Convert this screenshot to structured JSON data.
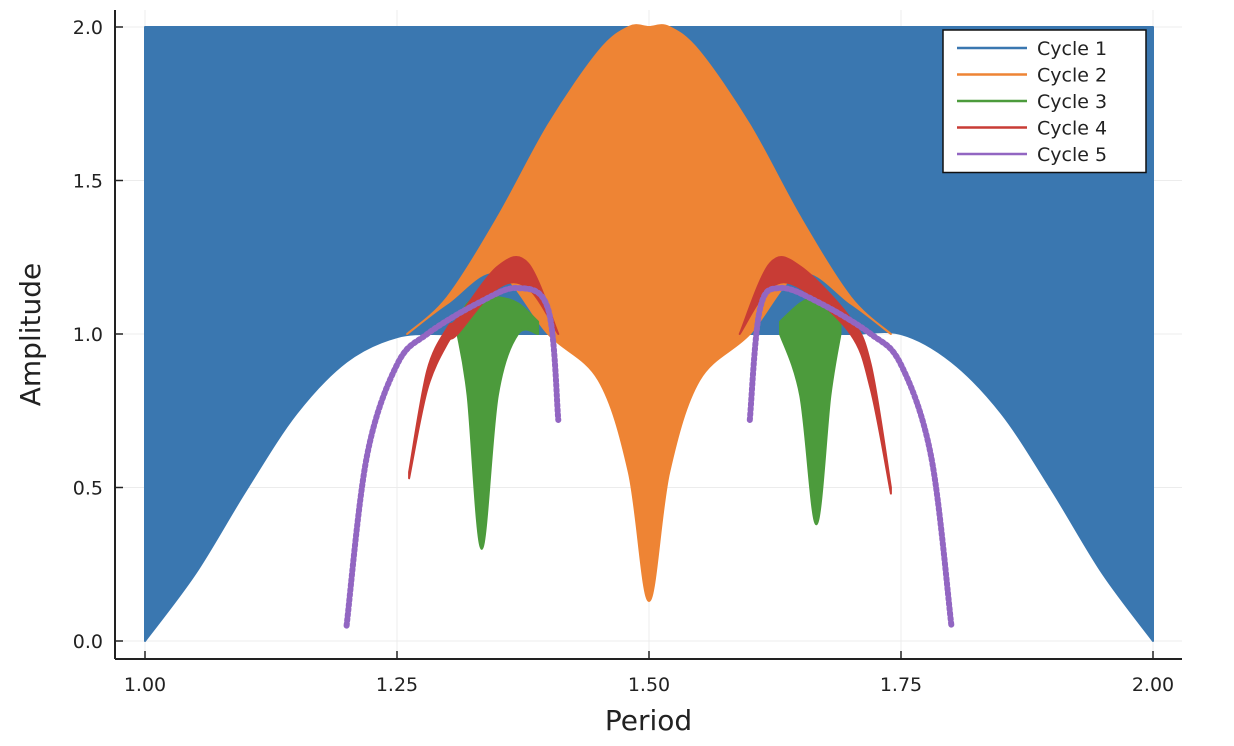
{
  "chart_data": {
    "type": "scatter",
    "title": "",
    "xlabel": "Period",
    "ylabel": "Amplitude",
    "xlim": [
      1.0,
      2.0
    ],
    "ylim": [
      0.0,
      2.0
    ],
    "xticks": [
      1.0,
      1.25,
      1.5,
      1.75,
      2.0
    ],
    "xtick_labels": [
      "1.00",
      "1.25",
      "1.50",
      "1.75",
      "2.00"
    ],
    "yticks": [
      0.0,
      0.5,
      1.0,
      1.5,
      2.0
    ],
    "ytick_labels": [
      "0.0",
      "0.5",
      "1.0",
      "1.5",
      "2.0"
    ],
    "grid": true,
    "legend_position": "top-right",
    "series": [
      {
        "name": "Cycle 1",
        "color": "#3a77b0",
        "region": "filled band",
        "x": [
          1.0,
          1.05,
          1.1,
          1.15,
          1.2,
          1.25,
          1.3,
          1.35,
          1.4,
          1.45,
          1.5,
          1.55,
          1.6,
          1.65,
          1.7,
          1.75,
          1.8,
          1.85,
          1.9,
          1.95,
          2.0
        ],
        "y_lower": [
          0.0,
          0.22,
          0.49,
          0.74,
          0.91,
          0.99,
          1.0,
          1.0,
          1.0,
          1.0,
          1.0,
          1.0,
          1.0,
          1.0,
          1.0,
          1.0,
          0.91,
          0.74,
          0.49,
          0.22,
          0.0
        ],
        "y_upper": [
          2.0,
          2.0,
          2.0,
          2.0,
          2.0,
          2.0,
          2.0,
          2.0,
          2.0,
          2.0,
          2.0,
          2.0,
          2.0,
          2.0,
          2.0,
          2.0,
          2.0,
          2.0,
          2.0,
          2.0,
          2.0
        ]
      },
      {
        "name": "Cycle 2",
        "color": "#ee8434",
        "region": "filled band",
        "x": [
          1.26,
          1.3,
          1.35,
          1.4,
          1.45,
          1.48,
          1.5,
          1.52,
          1.55,
          1.6,
          1.65,
          1.7,
          1.74
        ],
        "y_upper": [
          1.0,
          1.12,
          1.38,
          1.68,
          1.92,
          2.0,
          2.0,
          2.0,
          1.92,
          1.68,
          1.38,
          1.12,
          1.0
        ],
        "y_lower": [
          1.0,
          1.1,
          1.2,
          1.0,
          0.85,
          0.55,
          0.13,
          0.55,
          0.85,
          1.0,
          1.2,
          1.1,
          1.0
        ]
      },
      {
        "name": "Cycle 3",
        "color": "#4c9b3c",
        "region": "filled band",
        "x": [
          1.31,
          1.32,
          1.334,
          1.35,
          1.37,
          1.39,
          1.63,
          1.65,
          1.666,
          1.68,
          1.69
        ],
        "y_upper": [
          1.04,
          1.1,
          1.12,
          1.12,
          1.1,
          1.04,
          1.04,
          1.1,
          1.12,
          1.1,
          1.04
        ],
        "y_lower": [
          1.0,
          0.8,
          0.3,
          0.8,
          1.0,
          1.0,
          1.0,
          0.8,
          0.38,
          0.8,
          1.0
        ]
      },
      {
        "name": "Cycle 4",
        "color": "#c83c35",
        "region": "filled band",
        "x": [
          1.262,
          1.28,
          1.3,
          1.31,
          1.35,
          1.38,
          1.41,
          1.59,
          1.62,
          1.65,
          1.7,
          1.72,
          1.74
        ],
        "y_upper": [
          0.55,
          0.88,
          1.02,
          1.05,
          1.22,
          1.23,
          1.0,
          1.0,
          1.23,
          1.22,
          1.05,
          0.9,
          0.5
        ],
        "y_lower": [
          0.53,
          0.82,
          0.97,
          1.0,
          1.15,
          1.15,
          1.0,
          1.0,
          1.15,
          1.15,
          1.0,
          0.82,
          0.48
        ]
      },
      {
        "name": "Cycle 5",
        "color": "#9266c2",
        "region": "curves",
        "x": [
          1.2,
          1.22,
          1.25,
          1.28,
          1.33,
          1.37,
          1.4,
          1.41,
          1.6,
          1.61,
          1.63,
          1.67,
          1.72,
          1.75,
          1.78,
          1.8
        ],
        "y": [
          0.05,
          0.6,
          0.9,
          1.0,
          1.1,
          1.15,
          1.08,
          0.72,
          0.72,
          1.08,
          1.15,
          1.1,
          1.0,
          0.9,
          0.6,
          0.05
        ]
      }
    ]
  }
}
